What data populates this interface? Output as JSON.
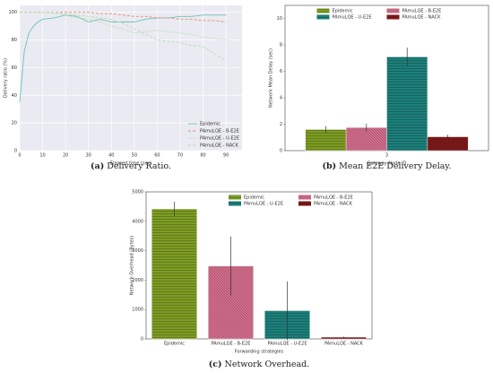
{
  "chart_data": [
    {
      "type": "line",
      "caption_label": "(a)",
      "caption": "Delivery Ratio.",
      "xlabel": "Elapsed time (sec)",
      "ylabel": "Delivery ratio (%)",
      "x": [
        0,
        2,
        4,
        6,
        8,
        10,
        15,
        20,
        25,
        30,
        35,
        40,
        45,
        50,
        55,
        60,
        65,
        70,
        75,
        80,
        85,
        90
      ],
      "series": [
        {
          "name": "Epidemic",
          "color": "#6fc2b4",
          "style": "solid",
          "values": [
            35,
            72,
            85,
            90,
            93,
            95,
            96,
            98,
            97,
            93,
            95,
            93,
            93,
            93,
            95,
            96,
            96,
            97,
            97,
            98,
            98,
            98
          ]
        },
        {
          "name": "PAmuLQE - B-E2E",
          "color": "#f08a73",
          "style": "dashed",
          "values": [
            100,
            100,
            100,
            100,
            100,
            100,
            100,
            100,
            100,
            100,
            99,
            99,
            98,
            97,
            97,
            96,
            96,
            95,
            95,
            94,
            94,
            93
          ]
        },
        {
          "name": "PAmuLQE - U-E2E",
          "color": "#a6d99a",
          "style": "dotted",
          "values": [
            100,
            100,
            100,
            100,
            100,
            100,
            99,
            98,
            96,
            95,
            93,
            90,
            88,
            85,
            86,
            87,
            86,
            85,
            84,
            82,
            81,
            80
          ]
        },
        {
          "name": "PAmuLQE - NACK",
          "color": "#b8dcb0",
          "style": "dashed",
          "values": [
            100,
            100,
            100,
            100,
            100,
            100,
            100,
            99,
            98,
            97,
            96,
            95,
            92,
            88,
            84,
            80,
            79,
            78,
            76,
            75,
            70,
            65
          ]
        }
      ],
      "xlim": [
        0,
        97
      ],
      "xticks": [
        0,
        10,
        20,
        30,
        40,
        50,
        60,
        70,
        80,
        90
      ],
      "ylim": [
        0,
        105
      ],
      "yticks": [
        0,
        20,
        40,
        60,
        80,
        100
      ],
      "grid": true,
      "legend": "lower right"
    },
    {
      "type": "bar",
      "caption_label": "(b)",
      "caption": "Mean E2E Delivery Delay.",
      "xlabel": "Gateway Node ID",
      "ylabel": "Network Mean Delay (sec)",
      "categories": [
        "3"
      ],
      "series": [
        {
          "name": "Epidemic",
          "color": "#7d9c23",
          "hatch": "horizontal",
          "values": [
            1.6
          ],
          "errors": [
            0.25
          ]
        },
        {
          "name": "PAmuLQE - B-E2E",
          "color": "#d9708f",
          "hatch": "diagonal",
          "values": [
            1.75
          ],
          "errors": [
            0.3
          ]
        },
        {
          "name": "PAmuLQE - U-E2E",
          "color": "#1c7f7a",
          "hatch": "horizontal",
          "values": [
            7.1
          ],
          "errors": [
            0.7
          ]
        },
        {
          "name": "PAmuLQE - NACK",
          "color": "#8e1c1c",
          "hatch": "cross",
          "values": [
            1.05
          ],
          "errors": [
            0.15
          ]
        }
      ],
      "ylim": [
        0,
        11
      ],
      "yticks": [
        0,
        2,
        4,
        6,
        8,
        10
      ],
      "grid": false,
      "legend": "upper center"
    },
    {
      "type": "bar",
      "caption_label": "(c)",
      "caption": "Network Overhead.",
      "xlabel": "Forwarding strategies",
      "ylabel": "Network Overhead (Bytes)",
      "categories": [
        "Epidemic",
        "PAmuLQE - B-E2E",
        "PAmuLQE - U-E2E",
        "PAmuLQE - NACK"
      ],
      "series": [
        {
          "name": "Epidemic",
          "color": "#7d9c23",
          "hatch": "horizontal",
          "values": [
            4420,
            null,
            null,
            null
          ],
          "errors": [
            250,
            null,
            null,
            null
          ]
        },
        {
          "name": "PAmuLQE - B-E2E",
          "color": "#d9708f",
          "hatch": "diagonal",
          "values": [
            null,
            2480,
            null,
            null
          ],
          "errors": [
            null,
            1000,
            null,
            null
          ]
        },
        {
          "name": "PAmuLQE - U-E2E",
          "color": "#1c7f7a",
          "hatch": "horizontal",
          "values": [
            null,
            null,
            960,
            null
          ],
          "errors": [
            null,
            null,
            1000,
            null
          ]
        },
        {
          "name": "PAmuLQE - NACK",
          "color": "#8e1c1c",
          "hatch": "cross",
          "values": [
            null,
            null,
            null,
            60
          ],
          "errors": [
            null,
            null,
            null,
            20
          ]
        }
      ],
      "ylim": [
        0,
        5000
      ],
      "yticks": [
        0,
        1000,
        2000,
        3000,
        4000,
        5000
      ],
      "grid": false,
      "legend": "upper right"
    }
  ]
}
